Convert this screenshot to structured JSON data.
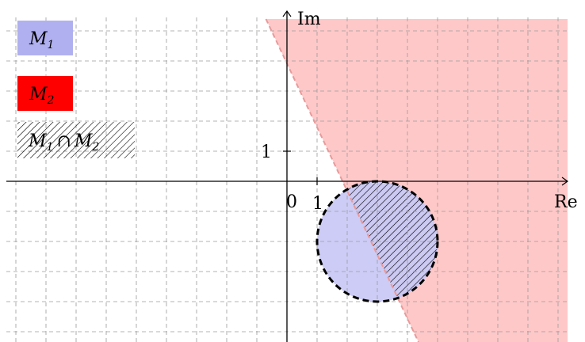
{
  "colors": {
    "m1_fill": "#c9c9f6",
    "m2_fill": "#ffc8c8",
    "legend_m1": "#b0b0f0",
    "legend_m2": "#ff0000",
    "grid": "#9a9a9a",
    "axis": "#000000",
    "boundary": "#000000"
  },
  "axes": {
    "x_label": "Re",
    "y_label": "Im",
    "origin_label": "0",
    "x_tick_label": "1",
    "y_tick_label": "1"
  },
  "legend": {
    "m1": {
      "main": "M",
      "sub": "1"
    },
    "m2": {
      "main": "M",
      "sub": "2"
    },
    "intersection": {
      "m1": "M",
      "sub1": "1",
      "cap": "∩",
      "m2": "M",
      "sub2": "2"
    }
  },
  "regions": {
    "circle_center": {
      "re": 3,
      "im": -2
    },
    "circle_radius": 2,
    "half_plane_boundary": {
      "point_a": {
        "re": -0.7,
        "im": 5.4
      },
      "point_b": {
        "re": 4.3,
        "im": -5.2
      }
    }
  }
}
